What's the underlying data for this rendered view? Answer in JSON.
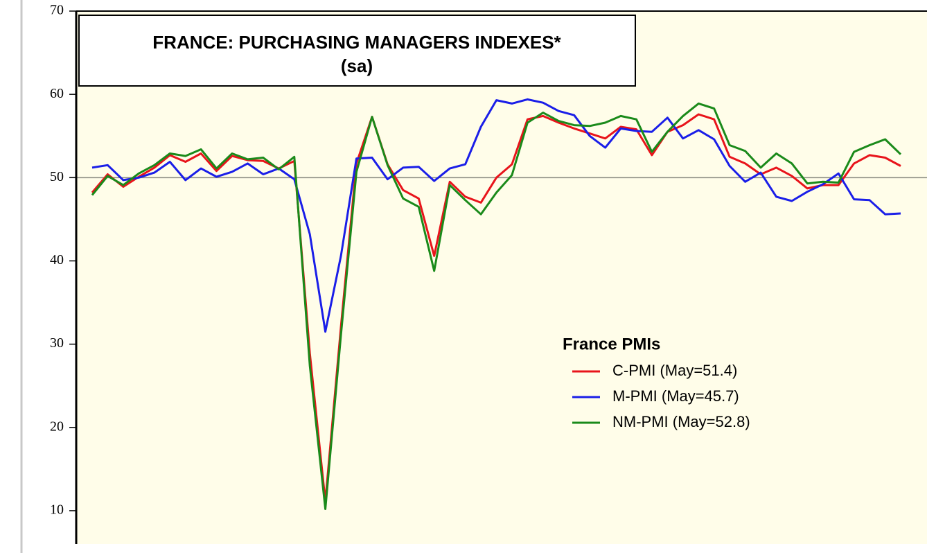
{
  "chart_data": {
    "type": "line",
    "title": "FRANCE: PURCHASING MANAGERS INDEXES*",
    "subtitle": "(sa)",
    "legend_title": "France PMIs",
    "categories": [
      null,
      null,
      null,
      null,
      null,
      null,
      null,
      null,
      null,
      null,
      null,
      null,
      null,
      null,
      null,
      null,
      null,
      null,
      null,
      null,
      null,
      null,
      null,
      null,
      null,
      null,
      null,
      null,
      null,
      null,
      null,
      null,
      null,
      null,
      null,
      null,
      null,
      null,
      null,
      null,
      null,
      null,
      null,
      null,
      null,
      null,
      null,
      null,
      null,
      null,
      null,
      null,
      null
    ],
    "series": [
      {
        "name": "C-PMI (May=51.4)",
        "color": "#e8141b",
        "values": [
          48.2,
          50.4,
          48.9,
          50.1,
          51.2,
          52.7,
          51.9,
          52.9,
          50.8,
          52.6,
          52.1,
          52.0,
          51.1,
          52.0,
          28.9,
          11.1,
          32.1,
          51.7,
          57.3,
          51.6,
          48.5,
          47.5,
          40.6,
          49.5,
          47.7,
          47.0,
          50.0,
          51.6,
          57.0,
          57.4,
          56.6,
          55.9,
          55.3,
          54.7,
          56.1,
          55.8,
          52.7,
          55.5,
          56.3,
          57.6,
          57.0,
          52.5,
          51.7,
          50.4,
          51.2,
          50.2,
          48.7,
          49.1,
          49.1,
          51.7,
          52.7,
          52.4,
          51.4
        ]
      },
      {
        "name": "M-PMI (May=45.7)",
        "color": "#1a1ee8",
        "values": [
          51.2,
          51.5,
          49.7,
          50.0,
          50.6,
          51.9,
          49.7,
          51.1,
          50.1,
          50.7,
          51.7,
          50.4,
          51.1,
          49.8,
          43.2,
          31.5,
          40.6,
          52.3,
          52.4,
          49.8,
          51.2,
          51.3,
          49.6,
          51.1,
          51.6,
          56.1,
          59.3,
          58.9,
          59.4,
          59.0,
          58.0,
          57.5,
          55.0,
          53.6,
          55.9,
          55.6,
          55.5,
          57.2,
          54.7,
          55.7,
          54.6,
          51.4,
          49.5,
          50.6,
          47.7,
          47.2,
          48.3,
          49.2,
          50.5,
          47.4,
          47.3,
          45.6,
          45.7
        ]
      },
      {
        "name": "NM-PMI (May=52.8)",
        "color": "#1a8a1a",
        "values": [
          47.9,
          50.2,
          49.1,
          50.5,
          51.5,
          52.9,
          52.6,
          53.4,
          51.1,
          52.9,
          52.2,
          52.4,
          51.0,
          52.5,
          27.4,
          10.2,
          31.1,
          50.7,
          57.3,
          51.5,
          47.5,
          46.5,
          38.8,
          49.1,
          47.3,
          45.6,
          48.2,
          50.3,
          56.6,
          57.8,
          56.8,
          56.3,
          56.2,
          56.6,
          57.4,
          57.0,
          53.1,
          55.5,
          57.4,
          58.9,
          58.3,
          53.9,
          53.2,
          51.2,
          52.9,
          51.7,
          49.3,
          49.5,
          49.4,
          53.1,
          53.9,
          54.6,
          52.8
        ]
      }
    ],
    "ylim": [
      6,
      70
    ],
    "yticks": [
      10,
      20,
      30,
      40,
      50,
      60,
      70
    ],
    "reference_line": 50
  }
}
